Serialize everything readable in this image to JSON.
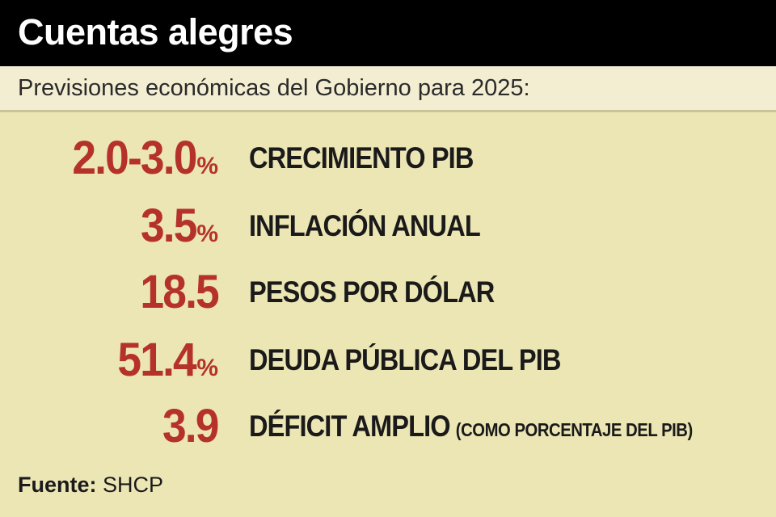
{
  "header": {
    "title": "Cuentas alegres",
    "subtitle": "Previsiones económicas del Gobierno para 2025:"
  },
  "colors": {
    "background": "#ece5b4",
    "header_bg": "#000000",
    "value_red": "#b5322c",
    "text_dark": "#1a1a1a"
  },
  "chart_data": {
    "type": "table",
    "title": "Cuentas alegres",
    "subtitle": "Previsiones económicas del Gobierno para 2025:",
    "rows": [
      {
        "value": "2.0-3.0",
        "unit": "%",
        "label": "CRECIMIENTO PIB",
        "note": ""
      },
      {
        "value": "3.5",
        "unit": "%",
        "label": "INFLACIÓN ANUAL",
        "note": ""
      },
      {
        "value": "18.5",
        "unit": "",
        "label": "PESOS POR DÓLAR",
        "note": ""
      },
      {
        "value": "51.4",
        "unit": "%",
        "label": "DEUDA PÚBLICA DEL PIB",
        "note": ""
      },
      {
        "value": "3.9",
        "unit": "",
        "label": "DÉFICIT AMPLIO",
        "note": "(COMO PORCENTAJE DEL PIB)"
      }
    ]
  },
  "source": {
    "label": "Fuente:",
    "value": "SHCP"
  }
}
